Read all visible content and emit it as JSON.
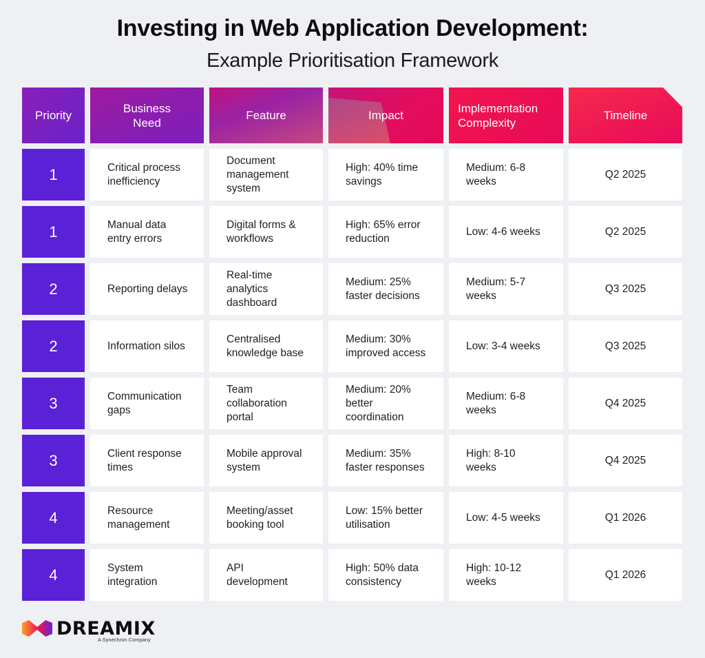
{
  "title": "Investing in Web Application Development:",
  "subtitle": "Example Prioritisation Framework",
  "colors": {
    "background": "#eef0f4",
    "priority_cell": "#5a21d6",
    "header_purple": "#8a1fb8",
    "header_pink": "#e80a5a"
  },
  "table": {
    "headers": [
      "Priority",
      "Business Need",
      "Feature",
      "Impact",
      "Implementation Complexity",
      "Timeline"
    ],
    "rows": [
      {
        "priority": "1",
        "need": "Critical process inefficiency",
        "feature": "Document management system",
        "impact": "High: 40% time savings",
        "complexity": "Medium: 6-8 weeks",
        "timeline": "Q2 2025"
      },
      {
        "priority": "1",
        "need": "Manual data entry errors",
        "feature": "Digital forms & workflows",
        "impact": "High: 65% error reduction",
        "complexity": "Low: 4-6 weeks",
        "timeline": "Q2 2025"
      },
      {
        "priority": "2",
        "need": "Reporting delays",
        "feature": "Real-time analytics dashboard",
        "impact": "Medium: 25% faster decisions",
        "complexity": "Medium: 5-7 weeks",
        "timeline": "Q3 2025"
      },
      {
        "priority": "2",
        "need": "Information silos",
        "feature": "Centralised knowledge base",
        "impact": "Medium: 30% improved access",
        "complexity": "Low: 3-4 weeks",
        "timeline": "Q3 2025"
      },
      {
        "priority": "3",
        "need": "Communication gaps",
        "feature": "Team collaboration portal",
        "impact": "Medium: 20% better coordination",
        "complexity": "Medium: 6-8 weeks",
        "timeline": "Q4 2025"
      },
      {
        "priority": "3",
        "need": "Client response times",
        "feature": "Mobile approval system",
        "impact": "Medium: 35% faster responses",
        "complexity": "High: 8-10 weeks",
        "timeline": "Q4 2025"
      },
      {
        "priority": "4",
        "need": "Resource management",
        "feature": "Meeting/asset booking tool",
        "impact": "Low: 15% better utilisation",
        "complexity": "Low: 4-5 weeks",
        "timeline": "Q1 2026"
      },
      {
        "priority": "4",
        "need": "System integration",
        "feature": "API development",
        "impact": "High: 50% data consistency",
        "complexity": "High: 10-12 weeks",
        "timeline": "Q1 2026"
      }
    ]
  },
  "logo": {
    "icon": "dreamix-logo-icon",
    "name": "DREAMIX",
    "tagline": "A Synechron Company"
  }
}
